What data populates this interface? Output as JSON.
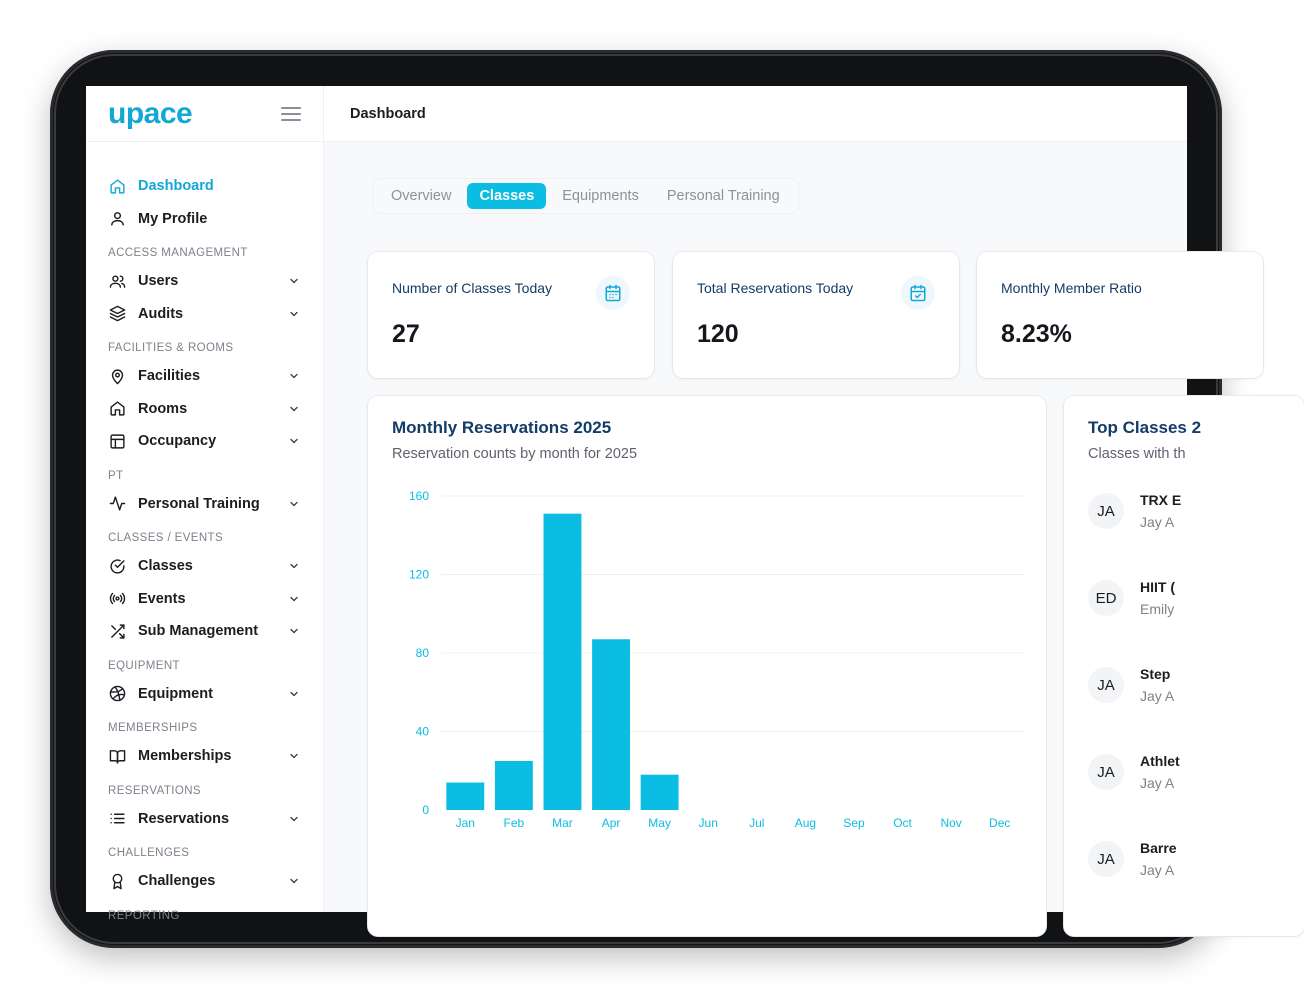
{
  "brand": {
    "logo": "upace",
    "accent": "#12a8d6"
  },
  "header": {
    "title": "Dashboard"
  },
  "sidebar": {
    "top_items": [
      {
        "label": "Dashboard",
        "icon": "home-icon",
        "active": true
      },
      {
        "label": "My Profile",
        "icon": "user-icon"
      }
    ],
    "sections": [
      {
        "title": "ACCESS MANAGEMENT",
        "items": [
          {
            "label": "Users",
            "icon": "users-icon"
          },
          {
            "label": "Audits",
            "icon": "layers-icon"
          }
        ]
      },
      {
        "title": "FACILITIES & ROOMS",
        "items": [
          {
            "label": "Facilities",
            "icon": "map-pin-icon"
          },
          {
            "label": "Rooms",
            "icon": "home-icon"
          },
          {
            "label": "Occupancy",
            "icon": "layout-icon"
          }
        ]
      },
      {
        "title": "PT",
        "items": [
          {
            "label": "Personal Training",
            "icon": "activity-icon"
          }
        ]
      },
      {
        "title": "CLASSES / EVENTS",
        "items": [
          {
            "label": "Classes",
            "icon": "check-circle-icon"
          },
          {
            "label": "Events",
            "icon": "radio-icon"
          },
          {
            "label": "Sub Management",
            "icon": "shuffle-icon"
          }
        ]
      },
      {
        "title": "EQUIPMENT",
        "items": [
          {
            "label": "Equipment",
            "icon": "dribbble-icon"
          }
        ]
      },
      {
        "title": "MEMBERSHIPS",
        "items": [
          {
            "label": "Memberships",
            "icon": "book-open-icon"
          }
        ]
      },
      {
        "title": "RESERVATIONS",
        "items": [
          {
            "label": "Reservations",
            "icon": "list-icon"
          }
        ]
      },
      {
        "title": "CHALLENGES",
        "items": [
          {
            "label": "Challenges",
            "icon": "award-icon"
          }
        ]
      },
      {
        "title": "REPORTING",
        "items": []
      }
    ]
  },
  "tabs": [
    {
      "label": "Overview",
      "active": false
    },
    {
      "label": "Classes",
      "active": true
    },
    {
      "label": "Equipments",
      "active": false
    },
    {
      "label": "Personal Training",
      "active": false
    }
  ],
  "stats": [
    {
      "label": "Number of Classes Today",
      "value": "27",
      "icon": "calendar-icon"
    },
    {
      "label": "Total Reservations Today",
      "value": "120",
      "icon": "calendar-check-icon"
    },
    {
      "label": "Monthly Member Ratio",
      "value": "8.23%"
    }
  ],
  "monthly_chart": {
    "title": "Monthly Reservations 2025",
    "subtitle": "Reservation counts by month for 2025"
  },
  "chart_data": {
    "type": "bar",
    "title": "Monthly Reservations 2025",
    "subtitle": "Reservation counts by month for 2025",
    "categories": [
      "Jan",
      "Feb",
      "Mar",
      "Apr",
      "May",
      "Jun",
      "Jul",
      "Aug",
      "Sep",
      "Oct",
      "Nov",
      "Dec"
    ],
    "values": [
      14,
      25,
      151,
      87,
      18,
      0,
      0,
      0,
      0,
      0,
      0,
      0
    ],
    "yticks": [
      "0",
      "40",
      "80",
      "120",
      "160"
    ],
    "ylim": [
      0,
      160
    ],
    "grid": true,
    "color": "#0cbde3"
  },
  "top_classes": {
    "title": "Top Classes 2",
    "subtitle": "Classes with th",
    "items": [
      {
        "initials": "JA",
        "name": "TRX E",
        "instructor": "Jay A"
      },
      {
        "initials": "ED",
        "name": "HIIT (",
        "instructor": "Emily"
      },
      {
        "initials": "JA",
        "name": "Step",
        "instructor": "Jay A"
      },
      {
        "initials": "JA",
        "name": "Athlet",
        "instructor": "Jay A"
      },
      {
        "initials": "JA",
        "name": "Barre",
        "instructor": "Jay A"
      }
    ]
  }
}
